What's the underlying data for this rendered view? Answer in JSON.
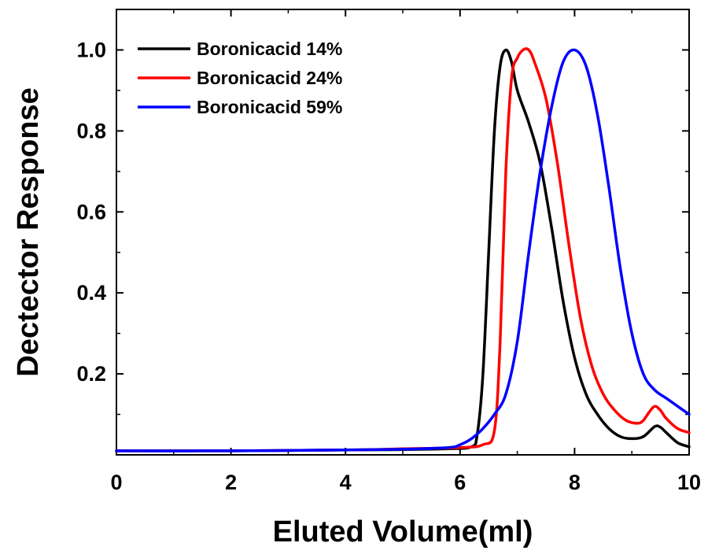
{
  "chart_data": {
    "type": "line",
    "title": "",
    "xlabel": "Eluted Volume(ml)",
    "ylabel": "Dectector Response",
    "xlim": [
      0,
      10
    ],
    "ylim": [
      0,
      1.1
    ],
    "xticks": [
      0,
      2,
      4,
      6,
      8,
      10
    ],
    "xtick_labels": [
      "0",
      "2",
      "4",
      "6",
      "8",
      "10"
    ],
    "yticks": [
      0.2,
      0.4,
      0.6,
      0.8,
      1.0
    ],
    "ytick_labels": [
      "0.2",
      "0.4",
      "0.6",
      "0.8",
      "1.0"
    ],
    "grid": false,
    "legend_position": "top-left",
    "series": [
      {
        "name": "Boronicacid 14%",
        "color": "#000000",
        "x": [
          0,
          2,
          4,
          5,
          5.8,
          6.2,
          6.3,
          6.4,
          6.5,
          6.6,
          6.7,
          6.8,
          6.9,
          7.0,
          7.2,
          7.4,
          7.6,
          7.8,
          8.0,
          8.2,
          8.4,
          8.6,
          8.8,
          9.0,
          9.2,
          9.4,
          9.5,
          9.6,
          9.8,
          10.0
        ],
        "y": [
          0.01,
          0.01,
          0.012,
          0.013,
          0.015,
          0.02,
          0.05,
          0.2,
          0.5,
          0.8,
          0.96,
          1.0,
          0.97,
          0.9,
          0.82,
          0.72,
          0.56,
          0.38,
          0.24,
          0.15,
          0.1,
          0.065,
          0.045,
          0.04,
          0.045,
          0.07,
          0.068,
          0.055,
          0.03,
          0.02
        ]
      },
      {
        "name": "Boronicacid 24%",
        "color": "#ff0000",
        "x": [
          0,
          2,
          4,
          5,
          6.0,
          6.4,
          6.6,
          6.7,
          6.8,
          6.9,
          7.0,
          7.1,
          7.2,
          7.3,
          7.5,
          7.7,
          7.9,
          8.1,
          8.3,
          8.5,
          8.7,
          8.9,
          9.1,
          9.2,
          9.3,
          9.4,
          9.5,
          9.6,
          9.8,
          10.0
        ],
        "y": [
          0.01,
          0.01,
          0.012,
          0.015,
          0.018,
          0.025,
          0.06,
          0.28,
          0.7,
          0.93,
          0.98,
          1.0,
          1.0,
          0.97,
          0.88,
          0.72,
          0.52,
          0.34,
          0.22,
          0.15,
          0.11,
          0.085,
          0.078,
          0.085,
          0.105,
          0.12,
          0.11,
          0.09,
          0.065,
          0.055
        ]
      },
      {
        "name": "Boronicacid 59%",
        "color": "#0000ff",
        "x": [
          0,
          2,
          4,
          5,
          5.8,
          6.0,
          6.2,
          6.4,
          6.6,
          6.8,
          7.0,
          7.2,
          7.4,
          7.6,
          7.8,
          8.0,
          8.2,
          8.4,
          8.6,
          8.8,
          9.0,
          9.2,
          9.4,
          9.6,
          9.8,
          10.0
        ],
        "y": [
          0.01,
          0.01,
          0.012,
          0.014,
          0.018,
          0.025,
          0.04,
          0.065,
          0.1,
          0.15,
          0.28,
          0.5,
          0.7,
          0.86,
          0.97,
          1.0,
          0.96,
          0.84,
          0.66,
          0.46,
          0.3,
          0.2,
          0.16,
          0.14,
          0.12,
          0.1
        ]
      }
    ]
  }
}
